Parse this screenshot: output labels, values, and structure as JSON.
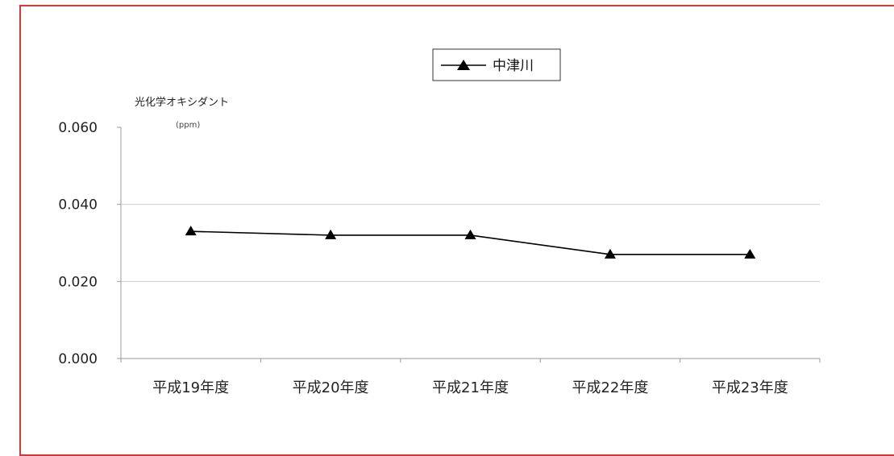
{
  "chart_data": {
    "type": "line",
    "ylabel": "光化学オキシダント",
    "yunit": "(ppm)",
    "ylim": [
      0,
      0.06
    ],
    "yticks": [
      "0.000",
      "0.020",
      "0.040",
      "0.060"
    ],
    "ytick_values": [
      0,
      0.02,
      0.04,
      0.06
    ],
    "categories": [
      "平成19年度",
      "平成20年度",
      "平成21年度",
      "平成22年度",
      "平成23年度"
    ],
    "series": [
      {
        "name": "中津川",
        "values": [
          0.033,
          0.032,
          0.032,
          0.027,
          0.027
        ],
        "color": "#000000",
        "marker": "triangle"
      }
    ],
    "legend_position": "top-center",
    "grid": "horizontal",
    "frame_color": "#d23a3a"
  }
}
